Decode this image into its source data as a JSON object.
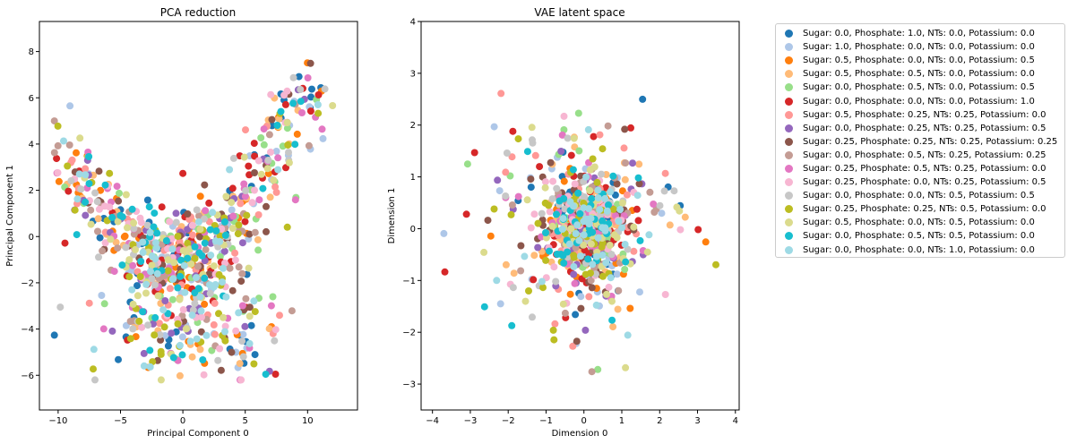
{
  "chart_data": [
    {
      "type": "scatter",
      "title": "PCA reduction",
      "xlabel": "Principal Component 0",
      "ylabel": "Principal Component 1",
      "xlim": [
        -11.5,
        14
      ],
      "ylim": [
        -7.5,
        9.3
      ],
      "xticks": [
        -10,
        -5,
        0,
        5,
        10
      ],
      "yticks": [
        -6,
        -4,
        -2,
        0,
        2,
        4,
        6,
        8
      ],
      "grid": false,
      "points_per_series": 50,
      "seed": 7
    },
    {
      "type": "scatter",
      "title": "VAE latent space",
      "xlabel": "Dimension 0",
      "ylabel": "Dimension 1",
      "xlim": [
        -4.3,
        4.1
      ],
      "ylim": [
        -3.5,
        4.0
      ],
      "xticks": [
        -4,
        -3,
        -2,
        -1,
        0,
        1,
        2,
        3,
        4
      ],
      "yticks": [
        -3,
        -2,
        -1,
        0,
        1,
        2,
        3,
        4
      ],
      "grid": false,
      "points_per_series": 45,
      "seed": 13
    }
  ],
  "legend": {
    "placement": "outside-right",
    "items": [
      {
        "label": "Sugar: 0.0, Phosphate: 1.0, NTs: 0.0, Potassium: 0.0",
        "color": "#1f77b4"
      },
      {
        "label": "Sugar: 1.0, Phosphate: 0.0, NTs: 0.0, Potassium: 0.0",
        "color": "#aec7e8"
      },
      {
        "label": "Sugar: 0.5, Phosphate: 0.0, NTs: 0.0, Potassium: 0.5",
        "color": "#ff7f0e"
      },
      {
        "label": "Sugar: 0.5, Phosphate: 0.5, NTs: 0.0, Potassium: 0.0",
        "color": "#ffbb78"
      },
      {
        "label": "Sugar: 0.0, Phosphate: 0.5, NTs: 0.0, Potassium: 0.5",
        "color": "#98df8a"
      },
      {
        "label": "Sugar: 0.0, Phosphate: 0.0, NTs: 0.0, Potassium: 1.0",
        "color": "#d62728"
      },
      {
        "label": "Sugar: 0.5, Phosphate: 0.25, NTs: 0.25, Potassium: 0.0",
        "color": "#ff9896"
      },
      {
        "label": "Sugar: 0.0, Phosphate: 0.25, NTs: 0.25, Potassium: 0.5",
        "color": "#9467bd"
      },
      {
        "label": "Sugar: 0.25, Phosphate: 0.25, NTs: 0.25, Potassium: 0.25",
        "color": "#8c564b"
      },
      {
        "label": "Sugar: 0.0, Phosphate: 0.5, NTs: 0.25, Potassium: 0.25",
        "color": "#c49c94"
      },
      {
        "label": "Sugar: 0.25, Phosphate: 0.5, NTs: 0.25, Potassium: 0.0",
        "color": "#e377c2"
      },
      {
        "label": "Sugar: 0.25, Phosphate: 0.0, NTs: 0.25, Potassium: 0.5",
        "color": "#f7b6d2"
      },
      {
        "label": "Sugar: 0.0, Phosphate: 0.0, NTs: 0.5, Potassium: 0.5",
        "color": "#c7c7c7"
      },
      {
        "label": "Sugar: 0.25, Phosphate: 0.25, NTs: 0.5, Potassium: 0.0",
        "color": "#bcbd22"
      },
      {
        "label": "Sugar: 0.5, Phosphate: 0.0, NTs: 0.5, Potassium: 0.0",
        "color": "#dbdb8d"
      },
      {
        "label": "Sugar: 0.0, Phosphate: 0.5, NTs: 0.5, Potassium: 0.0",
        "color": "#17becf"
      },
      {
        "label": "Sugar: 0.0, Phosphate: 0.0, NTs: 1.0, Potassium: 0.0",
        "color": "#9edae5"
      }
    ]
  }
}
